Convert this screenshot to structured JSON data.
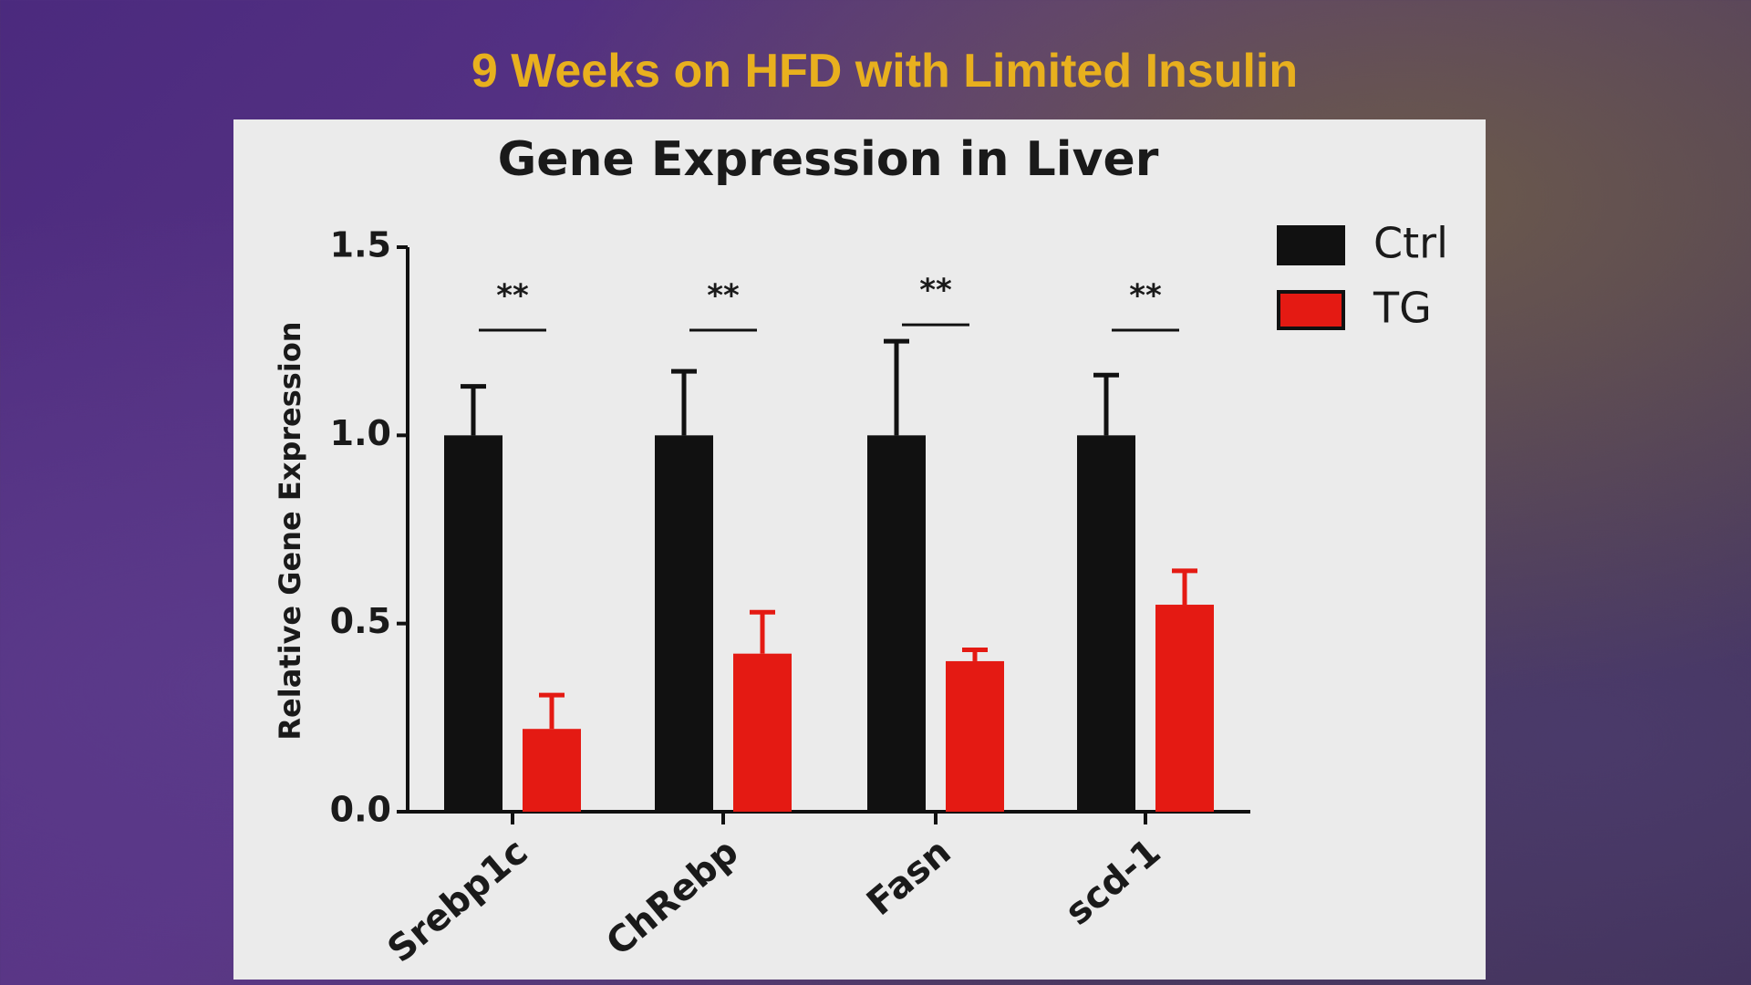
{
  "slide_title": "9 Weeks on HFD with Limited Insulin",
  "chart_data": {
    "type": "bar",
    "title": "Gene Expression in Liver",
    "y_label": "Relative Gene Expression",
    "categories": [
      "Srebp1c",
      "ChRebp",
      "Fasn",
      "scd-1"
    ],
    "series": [
      {
        "name": "Ctrl",
        "color": "#111111",
        "values": [
          1.0,
          1.0,
          1.0,
          1.0
        ],
        "errors": [
          0.13,
          0.17,
          0.25,
          0.16
        ]
      },
      {
        "name": "TG",
        "color": "#e41a13",
        "values": [
          0.22,
          0.42,
          0.4,
          0.55
        ],
        "errors": [
          0.09,
          0.11,
          0.03,
          0.09
        ]
      }
    ],
    "annotations": [
      "**",
      "**",
      "**",
      "**"
    ],
    "ylim": [
      0,
      1.5
    ],
    "yticks": [
      {
        "value": 0,
        "label": "0.0"
      },
      0.5,
      {
        "value": 1,
        "label": "1.0"
      },
      1.5
    ],
    "legend": "top-right"
  }
}
